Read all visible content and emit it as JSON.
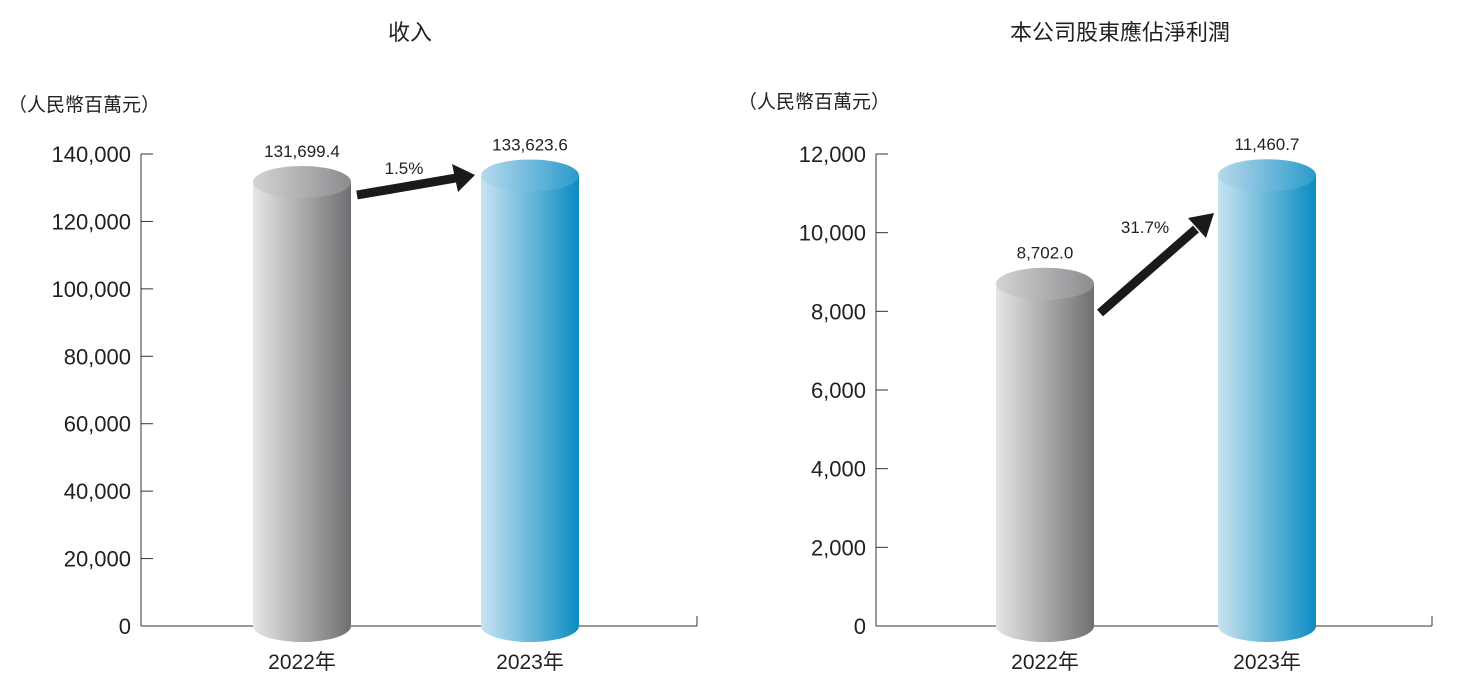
{
  "colors": {
    "gray_light": "#e6e6e8",
    "gray_dark": "#6f6f72",
    "blue_light": "#c9e3f1",
    "blue_dark": "#0a8cc2",
    "arrow": "#1a1a1a",
    "axis": "#333333",
    "text": "#231f20"
  },
  "chart_data": [
    {
      "type": "bar",
      "title": "收入",
      "unit_label": "（人民幣百萬元）",
      "categories": [
        "2022年",
        "2023年"
      ],
      "values": [
        131699.4,
        133623.6
      ],
      "value_labels": [
        "131,699.4",
        "133,623.6"
      ],
      "bar_colors": [
        "gray",
        "blue"
      ],
      "change_label": "1.5%",
      "ylim": [
        0,
        140000
      ],
      "yticks": [
        0,
        20000,
        40000,
        60000,
        80000,
        100000,
        120000,
        140000
      ],
      "ytick_labels": [
        "0",
        "20,000",
        "40,000",
        "60,000",
        "80,000",
        "100,000",
        "120,000",
        "140,000"
      ],
      "grid": false,
      "legend": "none"
    },
    {
      "type": "bar",
      "title": "本公司股東應佔淨利潤",
      "unit_label": "（人民幣百萬元）",
      "categories": [
        "2022年",
        "2023年"
      ],
      "values": [
        8702.0,
        11460.7
      ],
      "value_labels": [
        "8,702.0",
        "11,460.7"
      ],
      "bar_colors": [
        "gray",
        "blue"
      ],
      "change_label": "31.7%",
      "ylim": [
        0,
        12000
      ],
      "yticks": [
        0,
        2000,
        4000,
        6000,
        8000,
        10000,
        12000
      ],
      "ytick_labels": [
        "0",
        "2,000",
        "4,000",
        "6,000",
        "8,000",
        "10,000",
        "12,000"
      ],
      "grid": false,
      "legend": "none"
    }
  ]
}
